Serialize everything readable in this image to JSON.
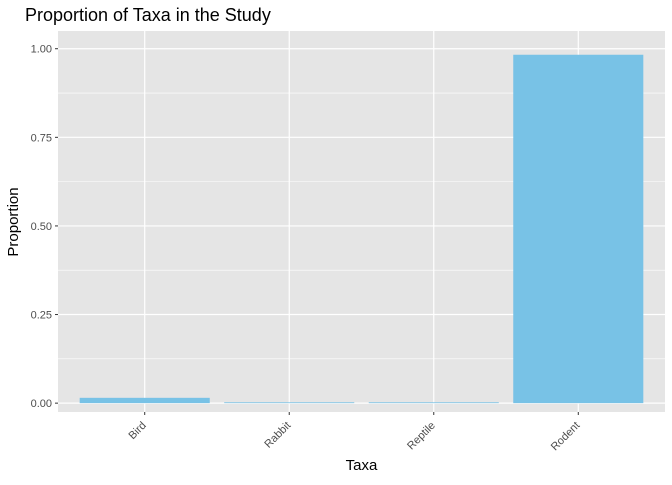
{
  "chart_data": {
    "type": "bar",
    "title": "Proportion of Taxa in the Study",
    "xlabel": "Taxa",
    "ylabel": "Proportion",
    "categories": [
      "Bird",
      "Rabbit",
      "Reptile",
      "Rodent"
    ],
    "values": [
      0.015,
      0.002,
      0.0005,
      0.983
    ],
    "ylim": [
      -0.025,
      1.05
    ],
    "yticks": [
      0.0,
      0.25,
      0.5,
      0.75,
      1.0
    ],
    "ytick_labels": [
      "0.00",
      "0.25",
      "0.50",
      "0.75",
      "1.00"
    ],
    "bar_color": "#78C2E6",
    "panel_color": "#E5E5E5",
    "grid_color": "#FFFFFF",
    "grid": true,
    "legend": "none"
  }
}
